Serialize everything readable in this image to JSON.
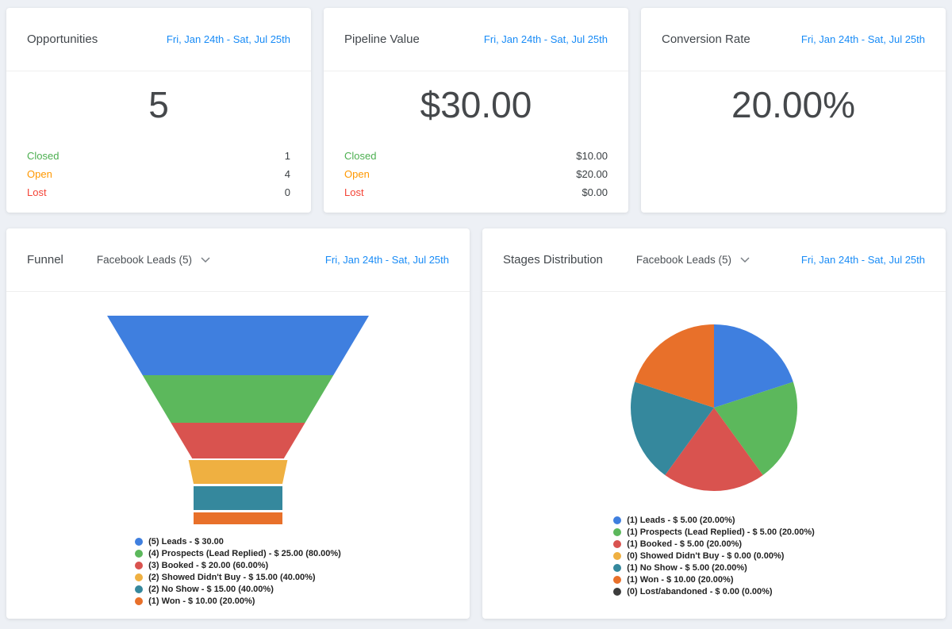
{
  "theme": {
    "background": "#edf0f5",
    "card": "#ffffff",
    "link_blue": "#188bf6",
    "closed_green": "#4caf50",
    "open_orange": "#ff9800",
    "lost_red": "#f44336"
  },
  "date_range": "Fri, Jan 24th - Sat, Jul 25th",
  "cards": {
    "opportunities": {
      "title": "Opportunities",
      "value": "5",
      "rows": [
        {
          "label": "Closed",
          "value": "1",
          "color": "#4caf50"
        },
        {
          "label": "Open",
          "value": "4",
          "color": "#ff9800"
        },
        {
          "label": "Lost",
          "value": "0",
          "color": "#f44336"
        }
      ]
    },
    "pipeline_value": {
      "title": "Pipeline Value",
      "value": "$30.00",
      "rows": [
        {
          "label": "Closed",
          "value": "$10.00",
          "color": "#4caf50"
        },
        {
          "label": "Open",
          "value": "$20.00",
          "color": "#ff9800"
        },
        {
          "label": "Lost",
          "value": "$0.00",
          "color": "#f44336"
        }
      ]
    },
    "conversion_rate": {
      "title": "Conversion Rate",
      "value": "20.00%"
    },
    "funnel": {
      "title": "Funnel",
      "filter": "Facebook Leads (5)",
      "legend": [
        {
          "text": "(5) Leads - $ 30.00",
          "color": "#3f7fdf"
        },
        {
          "text": "(4) Prospects (Lead Replied) - $ 25.00 (80.00%)",
          "color": "#5cb85c"
        },
        {
          "text": "(3) Booked - $ 20.00 (60.00%)",
          "color": "#d9534f"
        },
        {
          "text": "(2) Showed Didn't Buy - $ 15.00 (40.00%)",
          "color": "#efb041"
        },
        {
          "text": "(2) No Show - $ 15.00 (40.00%)",
          "color": "#35889d"
        },
        {
          "text": "(1) Won - $ 10.00 (20.00%)",
          "color": "#e8702a"
        }
      ]
    },
    "stages": {
      "title": "Stages Distribution",
      "filter": "Facebook Leads (5)",
      "legend": [
        {
          "text": "(1) Leads - $ 5.00 (20.00%)",
          "color": "#3f7fdf"
        },
        {
          "text": "(1) Prospects (Lead Replied) - $ 5.00 (20.00%)",
          "color": "#5cb85c"
        },
        {
          "text": "(1) Booked - $ 5.00 (20.00%)",
          "color": "#d9534f"
        },
        {
          "text": "(0) Showed Didn't Buy - $ 0.00 (0.00%)",
          "color": "#efb041"
        },
        {
          "text": "(1) No Show - $ 5.00 (20.00%)",
          "color": "#35889d"
        },
        {
          "text": "(1) Won - $ 10.00 (20.00%)",
          "color": "#e8702a"
        },
        {
          "text": "(0) Lost/abandoned - $ 0.00 (0.00%)",
          "color": "#3c3c3c"
        }
      ]
    }
  },
  "chart_data": [
    {
      "type": "funnel",
      "title": "Funnel",
      "filter": "Facebook Leads (5)",
      "categories": [
        "Leads",
        "Prospects (Lead Replied)",
        "Booked",
        "Showed Didn't Buy",
        "No Show",
        "Won"
      ],
      "counts": [
        5,
        4,
        3,
        2,
        2,
        1
      ],
      "values_usd": [
        30.0,
        25.0,
        20.0,
        15.0,
        15.0,
        10.0
      ],
      "percents": [
        100.0,
        80.0,
        60.0,
        40.0,
        40.0,
        20.0
      ],
      "colors": [
        "#3f7fdf",
        "#5cb85c",
        "#d9534f",
        "#efb041",
        "#35889d",
        "#e8702a"
      ]
    },
    {
      "type": "pie",
      "title": "Stages Distribution",
      "filter": "Facebook Leads (5)",
      "slices": [
        {
          "label": "Leads",
          "count": 1,
          "value_usd": 5.0,
          "pct": 20.0,
          "color": "#3f7fdf"
        },
        {
          "label": "Prospects (Lead Replied)",
          "count": 1,
          "value_usd": 5.0,
          "pct": 20.0,
          "color": "#5cb85c"
        },
        {
          "label": "Booked",
          "count": 1,
          "value_usd": 5.0,
          "pct": 20.0,
          "color": "#d9534f"
        },
        {
          "label": "Showed Didn't Buy",
          "count": 0,
          "value_usd": 0.0,
          "pct": 0.0,
          "color": "#efb041"
        },
        {
          "label": "No Show",
          "count": 1,
          "value_usd": 5.0,
          "pct": 20.0,
          "color": "#35889d"
        },
        {
          "label": "Won",
          "count": 1,
          "value_usd": 10.0,
          "pct": 20.0,
          "color": "#e8702a"
        },
        {
          "label": "Lost/abandoned",
          "count": 0,
          "value_usd": 0.0,
          "pct": 0.0,
          "color": "#3c3c3c"
        }
      ],
      "legend_position": "bottom",
      "start_angle_deg": -90,
      "direction": "clockwise"
    }
  ]
}
